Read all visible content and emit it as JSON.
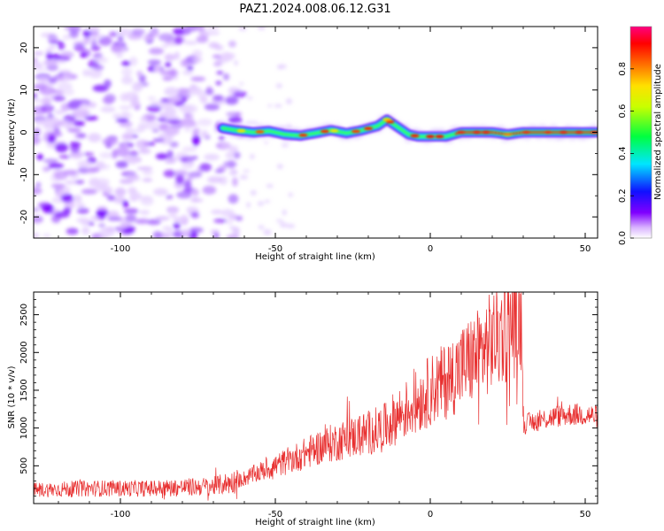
{
  "title": "PAZ1.2024.008.06.12.G31",
  "chart_data": [
    {
      "type": "heatmap",
      "xlabel": "Height of straight line (km)",
      "ylabel": "Frequency (Hz)",
      "xlim": [
        -128,
        54
      ],
      "ylim": [
        -25,
        25
      ],
      "xticks": [
        -100,
        -50,
        0,
        50
      ],
      "yticks": [
        -20,
        -10,
        0,
        10,
        20
      ],
      "colorbar": {
        "label": "Normalized spectral amplitude",
        "range": [
          0,
          1
        ],
        "ticks": [
          0.0,
          0.2,
          0.4,
          0.6,
          0.8
        ],
        "colormap": "rainbow"
      },
      "ridge": {
        "x": [
          -67,
          -63,
          -57,
          -52,
          -47,
          -42,
          -37,
          -32,
          -27,
          -22,
          -17,
          -14,
          -11,
          -7,
          -4,
          0,
          5,
          10,
          15,
          20,
          25,
          30,
          35,
          40,
          45,
          50,
          54
        ],
        "frequency": [
          1,
          0.5,
          0,
          0.3,
          -0.5,
          -0.8,
          -0.2,
          0.5,
          -0.2,
          0.5,
          1.5,
          3,
          1.5,
          -0.5,
          -1,
          -1,
          -1,
          0,
          0,
          0,
          -0.5,
          0,
          0,
          0,
          0,
          0,
          0
        ]
      },
      "noise_region_x": [
        -128,
        -65
      ]
    },
    {
      "type": "line",
      "xlabel": "Height of straight line (km)",
      "ylabel": "SNR (10 * v/v)",
      "xlim": [
        -128,
        54
      ],
      "ylim": [
        0,
        2800
      ],
      "xticks": [
        -100,
        -50,
        0,
        50
      ],
      "yticks": [
        500,
        1000,
        1500,
        2000,
        2500
      ],
      "series": [
        {
          "color": "#e83030",
          "x": [
            -128,
            -110,
            -90,
            -70,
            -62,
            -55,
            -45,
            -35,
            -25,
            -15,
            -10,
            -5,
            0,
            5,
            10,
            15,
            20,
            25,
            28,
            29.5,
            30,
            35,
            40,
            45,
            50,
            54
          ],
          "y": [
            180,
            200,
            200,
            230,
            300,
            420,
            580,
            760,
            880,
            1000,
            1180,
            1320,
            1500,
            1620,
            1800,
            1950,
            2150,
            2350,
            2450,
            2450,
            1050,
            1100,
            1150,
            1180,
            1180,
            1150
          ]
        }
      ]
    }
  ]
}
